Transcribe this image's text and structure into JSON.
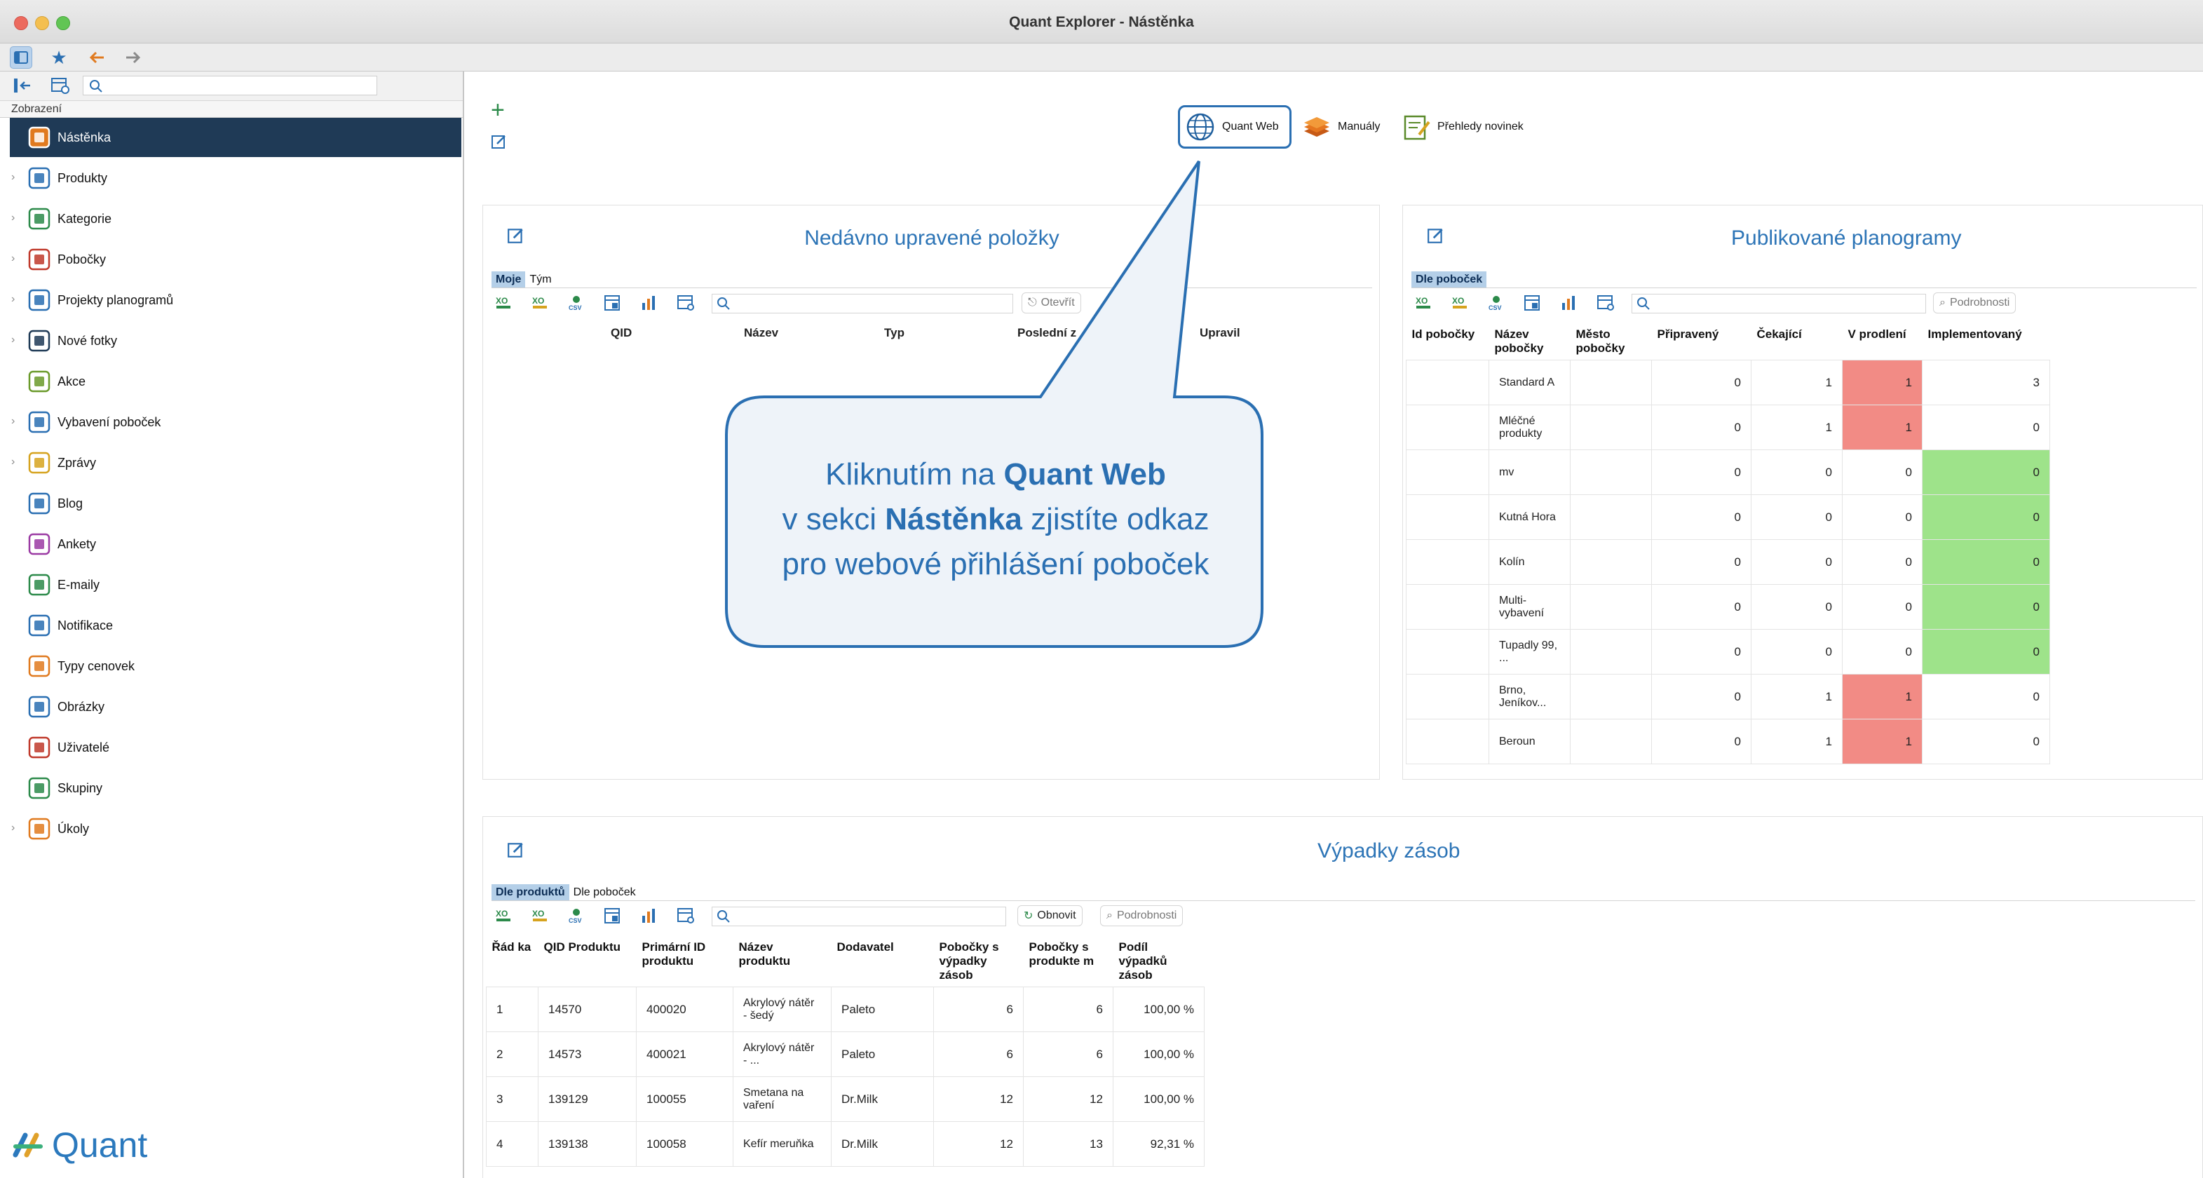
{
  "window": {
    "title": "Quant Explorer - Nástěnka"
  },
  "sidebar": {
    "section_label": "Zobrazení",
    "items": [
      {
        "label": "Nástěnka",
        "icon": "dashboard-icon",
        "expandable": false,
        "selected": true
      },
      {
        "label": "Produkty",
        "icon": "product-icon",
        "expandable": true
      },
      {
        "label": "Kategorie",
        "icon": "category-icon",
        "expandable": true
      },
      {
        "label": "Pobočky",
        "icon": "store-icon",
        "expandable": true
      },
      {
        "label": "Projekty planogramů",
        "icon": "planogram-icon",
        "expandable": true
      },
      {
        "label": "Nové fotky",
        "icon": "camera-icon",
        "expandable": true
      },
      {
        "label": "Akce",
        "icon": "promotion-icon",
        "expandable": false
      },
      {
        "label": "Vybavení poboček",
        "icon": "equipment-icon",
        "expandable": true
      },
      {
        "label": "Zprávy",
        "icon": "message-icon",
        "expandable": true
      },
      {
        "label": "Blog",
        "icon": "blog-icon",
        "expandable": false
      },
      {
        "label": "Ankety",
        "icon": "survey-icon",
        "expandable": false
      },
      {
        "label": "E-maily",
        "icon": "email-icon",
        "expandable": false
      },
      {
        "label": "Notifikace",
        "icon": "notification-icon",
        "expandable": false
      },
      {
        "label": "Typy cenovek",
        "icon": "price-tag-icon",
        "expandable": false
      },
      {
        "label": "Obrázky",
        "icon": "image-icon",
        "expandable": false
      },
      {
        "label": "Uživatelé",
        "icon": "user-icon",
        "expandable": false
      },
      {
        "label": "Skupiny",
        "icon": "group-icon",
        "expandable": false
      },
      {
        "label": "Úkoly",
        "icon": "task-icon",
        "expandable": true
      }
    ],
    "logo_text": "Quant"
  },
  "top_actions": {
    "quant_web": "Quant Web",
    "manuals": "Manuály",
    "news": "Přehledy novinek"
  },
  "recent": {
    "title": "Nedávno upravené položky",
    "tabs": [
      "Moje",
      "Tým"
    ],
    "open_label": "Otevřít",
    "columns": [
      "QID",
      "Název",
      "Typ",
      "Poslední z",
      "Upravil"
    ]
  },
  "planograms": {
    "title": "Publikované planogramy",
    "tab": "Dle poboček",
    "details_label": "Podrobnosti",
    "columns": [
      "Id pobočky",
      "Název pobočky",
      "Město pobočky",
      "Připravený",
      "Čekající",
      "V prodlení",
      "Implementovaný"
    ],
    "rows": [
      {
        "id": "",
        "name": "Standard A",
        "city": "",
        "ready": "0",
        "waiting": "1",
        "late": "1",
        "impl": "3",
        "late_status": "red",
        "impl_status": ""
      },
      {
        "id": "",
        "name": "Mléčné produkty",
        "city": "",
        "ready": "0",
        "waiting": "1",
        "late": "1",
        "impl": "0",
        "late_status": "red",
        "impl_status": ""
      },
      {
        "id": "",
        "name": "mv",
        "city": "",
        "ready": "0",
        "waiting": "0",
        "late": "0",
        "impl": "0",
        "late_status": "",
        "impl_status": "green"
      },
      {
        "id": "",
        "name": "Kutná Hora",
        "city": "",
        "ready": "0",
        "waiting": "0",
        "late": "0",
        "impl": "0",
        "late_status": "",
        "impl_status": "green"
      },
      {
        "id": "",
        "name": "Kolín",
        "city": "",
        "ready": "0",
        "waiting": "0",
        "late": "0",
        "impl": "0",
        "late_status": "",
        "impl_status": "green"
      },
      {
        "id": "",
        "name": "Multi-vybavení",
        "city": "",
        "ready": "0",
        "waiting": "0",
        "late": "0",
        "impl": "0",
        "late_status": "",
        "impl_status": "green"
      },
      {
        "id": "",
        "name": "Tupadly 99, ...",
        "city": "",
        "ready": "0",
        "waiting": "0",
        "late": "0",
        "impl": "0",
        "late_status": "",
        "impl_status": "green"
      },
      {
        "id": "",
        "name": "Brno, Jeníkov...",
        "city": "",
        "ready": "0",
        "waiting": "1",
        "late": "1",
        "impl": "0",
        "late_status": "red",
        "impl_status": ""
      },
      {
        "id": "",
        "name": "Beroun",
        "city": "",
        "ready": "0",
        "waiting": "1",
        "late": "1",
        "impl": "0",
        "late_status": "red",
        "impl_status": ""
      }
    ]
  },
  "stockouts": {
    "title": "Výpadky zásob",
    "tabs": [
      "Dle produktů",
      "Dle poboček"
    ],
    "refresh_label": "Obnovit",
    "details_label": "Podrobnosti",
    "columns": [
      "Řád ka",
      "QID Produktu",
      "Primární ID produktu",
      "Název produktu",
      "Dodavatel",
      "Pobočky s výpadky zásob",
      "Pobočky s produkte m",
      "Podíl výpadků zásob"
    ],
    "rows": [
      {
        "n": "1",
        "qid": "14570",
        "pid": "400020",
        "name": "Akrylový nátěr - šedý",
        "supplier": "Paleto",
        "out": "6",
        "with": "6",
        "share": "100,00 %"
      },
      {
        "n": "2",
        "qid": "14573",
        "pid": "400021",
        "name": "Akrylový nátěr - ...",
        "supplier": "Paleto",
        "out": "6",
        "with": "6",
        "share": "100,00 %"
      },
      {
        "n": "3",
        "qid": "139129",
        "pid": "100055",
        "name": "Smetana na vaření",
        "supplier": "Dr.Milk",
        "out": "12",
        "with": "12",
        "share": "100,00 %"
      },
      {
        "n": "4",
        "qid": "139138",
        "pid": "100058",
        "name": "Kefír meruňka",
        "supplier": "Dr.Milk",
        "out": "12",
        "with": "13",
        "share": "92,31 %"
      }
    ]
  },
  "callout": {
    "line1_prefix": "Kliknutím na ",
    "line1_bold": "Quant Web",
    "line2_prefix": "v sekci ",
    "line2_bold": "Nástěnka",
    "line2_suffix": " zjistíte odkaz",
    "line3": "pro webové přihlášení poboček"
  },
  "colors": {
    "accent": "#2c74b6",
    "selected_nav": "#1f3a56",
    "late": "#f28b85",
    "implemented": "#9ee38a"
  }
}
